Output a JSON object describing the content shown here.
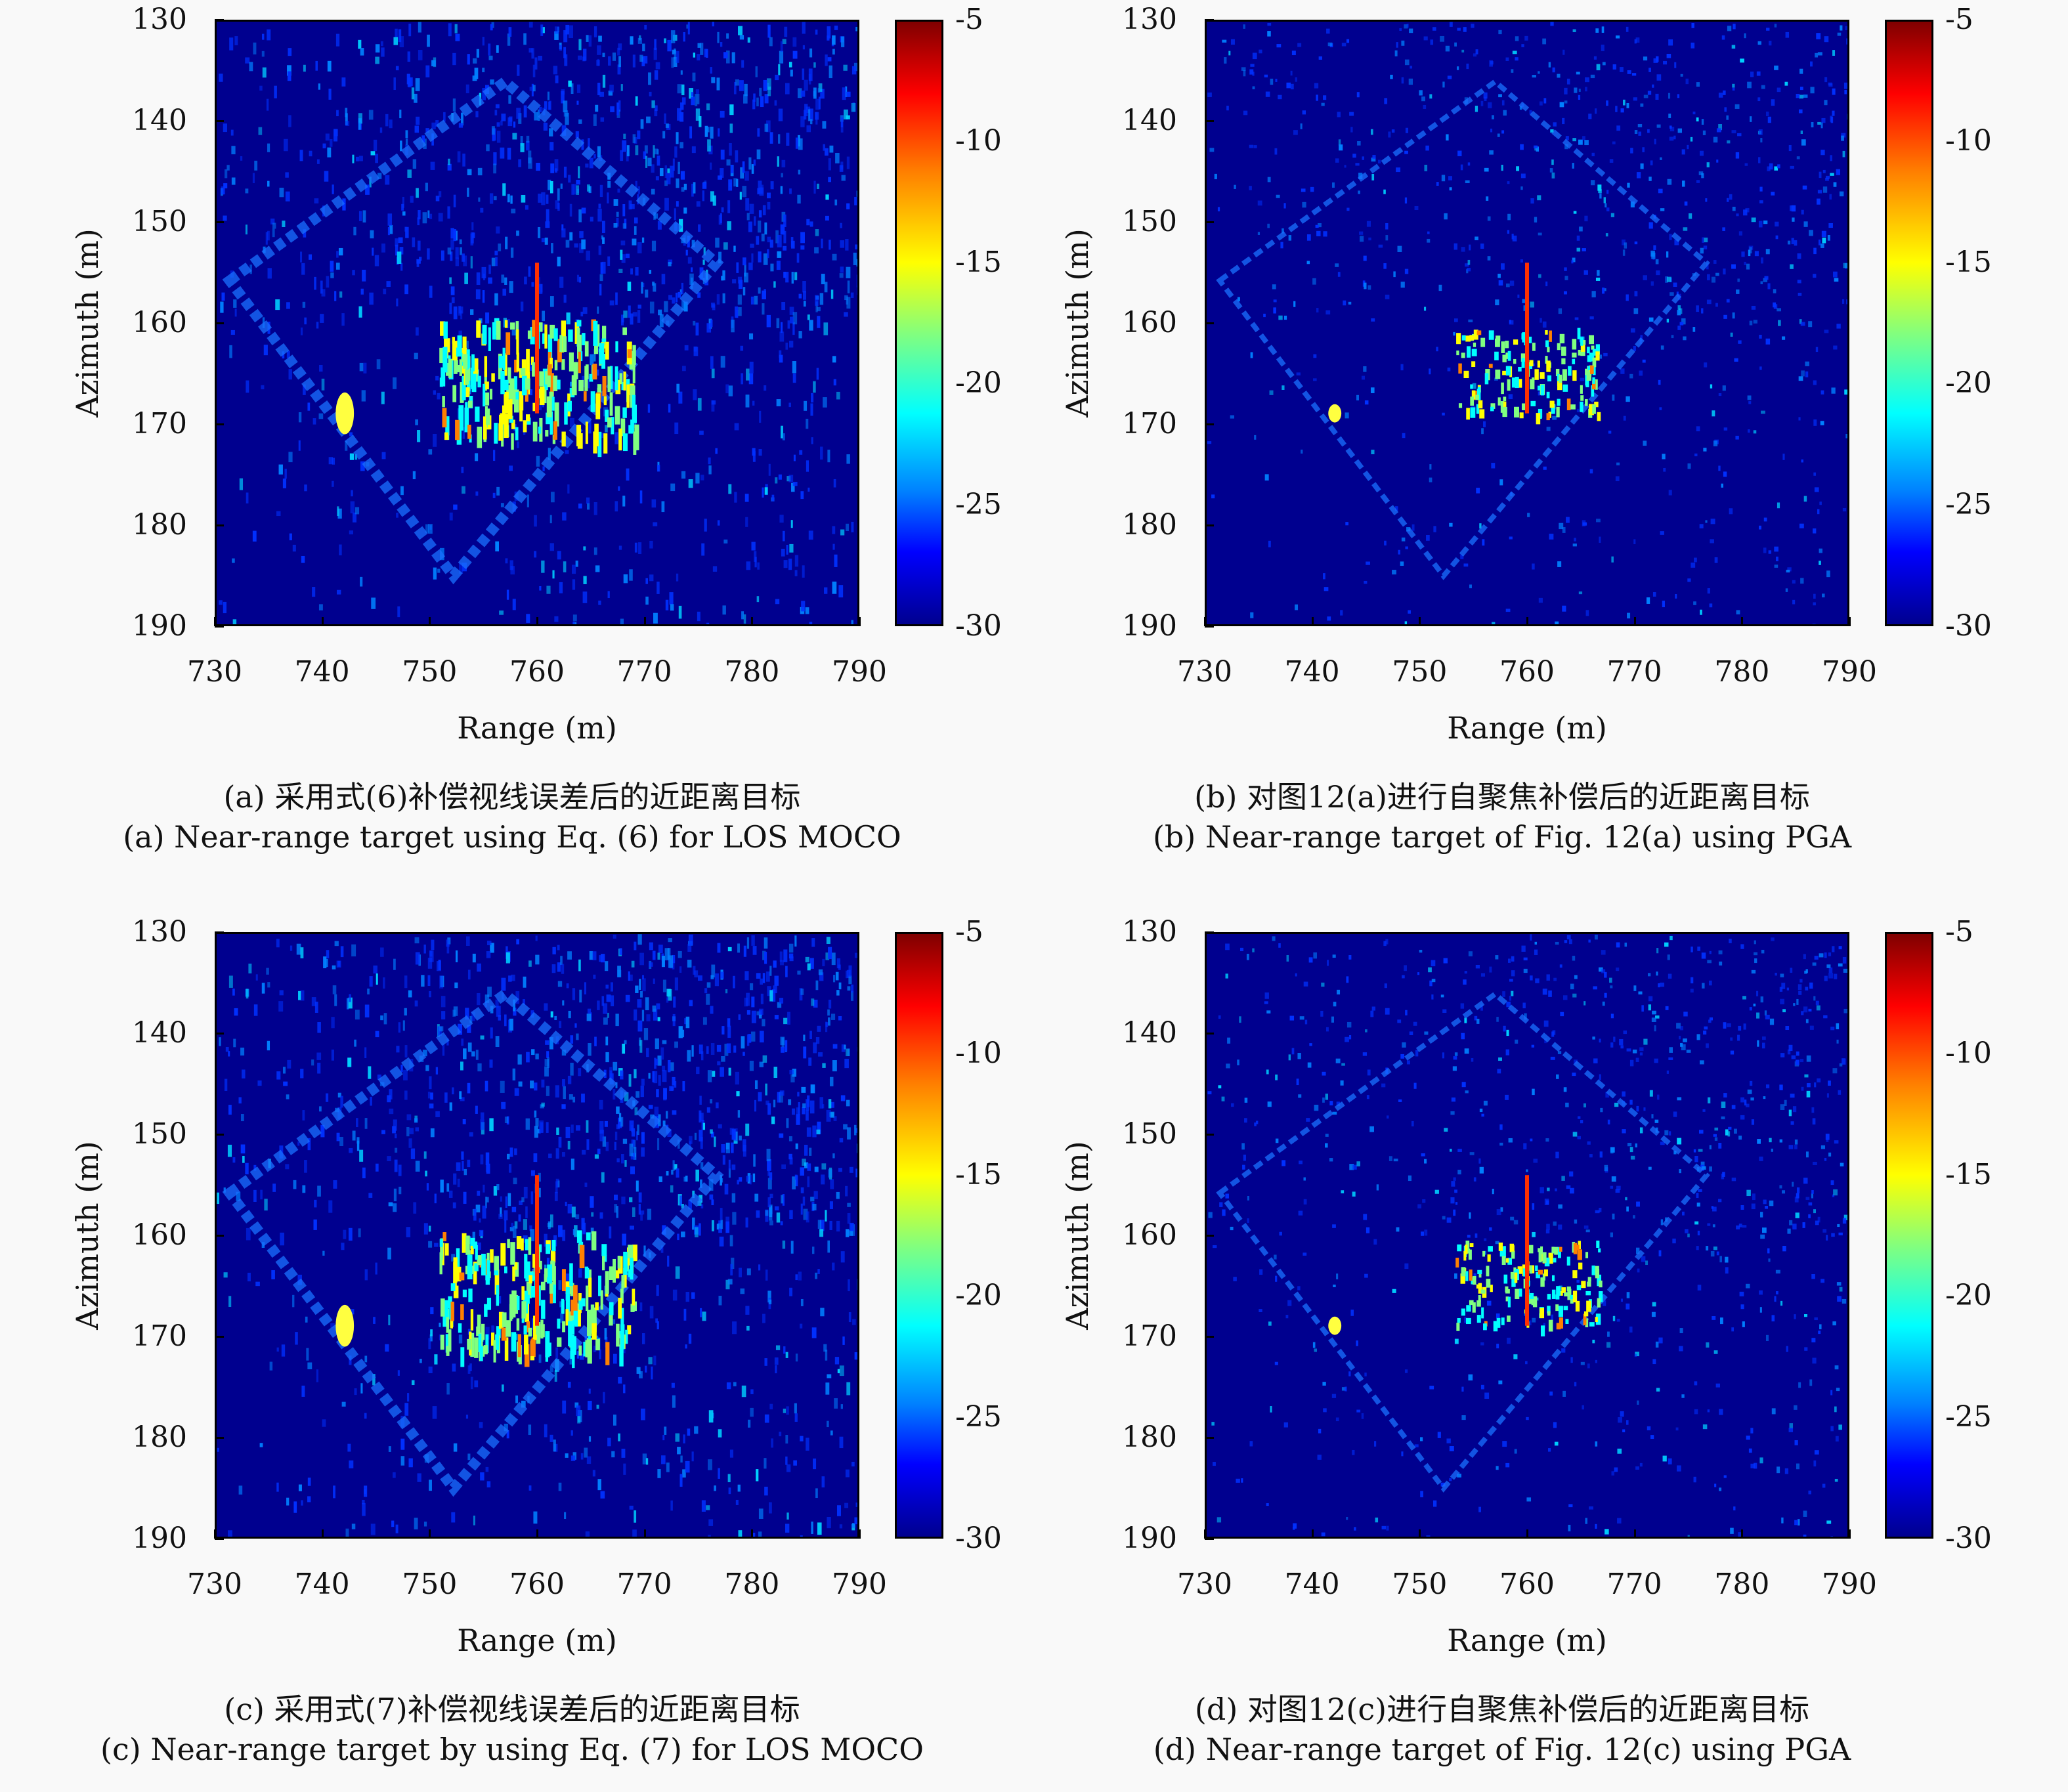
{
  "colorbar": {
    "ticks": [
      "-5",
      "-10",
      "-15",
      "-20",
      "-25",
      "-30"
    ],
    "colors": [
      "#800000",
      "#ff0000",
      "#ff8000",
      "#ffff00",
      "#80ff80",
      "#00ffff",
      "#0080ff",
      "#0000ff",
      "#00008f"
    ]
  },
  "chart_data": [
    {
      "type": "heatmap",
      "xlabel": "Range (m)",
      "ylabel": "Azimuth (m)",
      "xticks": [
        "730",
        "740",
        "750",
        "760",
        "770",
        "780",
        "790"
      ],
      "yticks": [
        "130",
        "140",
        "150",
        "160",
        "170",
        "180",
        "190"
      ],
      "xlim": [
        730,
        790
      ],
      "ylim": [
        130,
        190
      ],
      "clim": [
        -30,
        -5
      ],
      "caption_cn": "(a) 采用式(6)补偿视线误差后的近距离目标",
      "caption_en": "(a) Near-range target using Eq. (6) for LOS MOCO"
    },
    {
      "type": "heatmap",
      "xlabel": "Range (m)",
      "ylabel": "Azimuth (m)",
      "xticks": [
        "730",
        "740",
        "750",
        "760",
        "770",
        "780",
        "790"
      ],
      "yticks": [
        "130",
        "140",
        "150",
        "160",
        "170",
        "180",
        "190"
      ],
      "xlim": [
        730,
        790
      ],
      "ylim": [
        130,
        190
      ],
      "clim": [
        -30,
        -5
      ],
      "caption_cn": "(b) 对图12(a)进行自聚焦补偿后的近距离目标",
      "caption_en": "(b) Near-range target of Fig. 12(a) using PGA"
    },
    {
      "type": "heatmap",
      "xlabel": "Range (m)",
      "ylabel": "Azimuth (m)",
      "xticks": [
        "730",
        "740",
        "750",
        "760",
        "770",
        "780",
        "790"
      ],
      "yticks": [
        "130",
        "140",
        "150",
        "160",
        "170",
        "180",
        "190"
      ],
      "xlim": [
        730,
        790
      ],
      "ylim": [
        130,
        190
      ],
      "clim": [
        -30,
        -5
      ],
      "caption_cn": "(c) 采用式(7)补偿视线误差后的近距离目标",
      "caption_en": "(c) Near-range target by using Eq. (7) for LOS MOCO"
    },
    {
      "type": "heatmap",
      "xlabel": "Range (m)",
      "ylabel": "Azimuth (m)",
      "xticks": [
        "730",
        "740",
        "750",
        "760",
        "770",
        "780",
        "790"
      ],
      "yticks": [
        "130",
        "140",
        "150",
        "160",
        "170",
        "180",
        "190"
      ],
      "xlim": [
        730,
        790
      ],
      "ylim": [
        130,
        190
      ],
      "clim": [
        -30,
        -5
      ],
      "caption_cn": "(d) 对图12(c)进行自聚焦补偿后的近距离目标",
      "caption_en": "(d) Near-range target of Fig. 12(c) using PGA"
    }
  ]
}
